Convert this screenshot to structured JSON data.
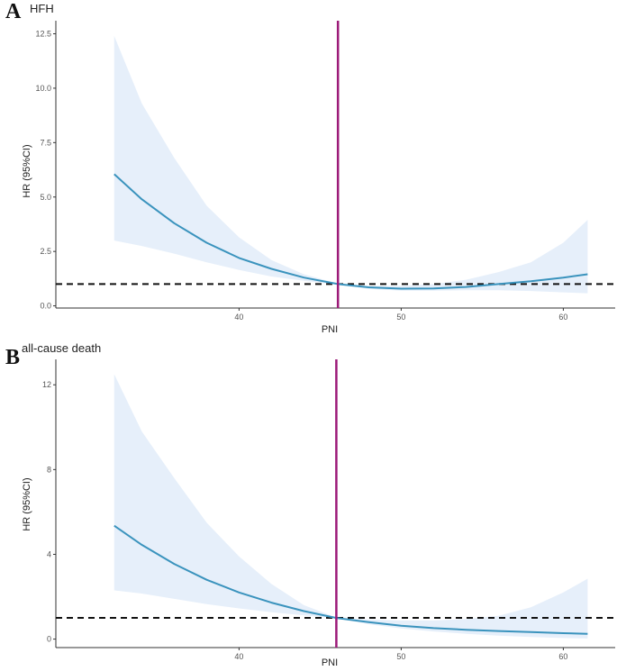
{
  "chart_data": [
    {
      "type": "line",
      "panel_label": "A",
      "title": "HFH",
      "xlabel": "PNI",
      "ylabel": "HR (95%CI)",
      "xlim": [
        28.7,
        63.2
      ],
      "ylim": [
        -0.1,
        13.1
      ],
      "x_ticks": [
        40,
        50,
        60
      ],
      "y_ticks": [
        0.0,
        2.5,
        5.0,
        7.5,
        10.0,
        12.5
      ],
      "y_tick_labels": [
        "0.0",
        "2.5",
        "5.0",
        "7.5",
        "10.0",
        "12.5"
      ],
      "reference_hr": 1,
      "cutoff_pni": 46.1,
      "series": [
        {
          "name": "HR",
          "x": [
            32.3,
            34,
            36,
            38,
            40,
            42,
            44,
            46.1,
            48,
            50,
            52,
            54,
            56,
            58,
            60,
            61.5
          ],
          "y": [
            6.05,
            4.9,
            3.8,
            2.9,
            2.2,
            1.7,
            1.3,
            1.0,
            0.85,
            0.79,
            0.8,
            0.87,
            1.0,
            1.13,
            1.3,
            1.45
          ],
          "lower": [
            3.0,
            2.75,
            2.4,
            2.0,
            1.65,
            1.35,
            1.15,
            0.97,
            0.78,
            0.7,
            0.7,
            0.72,
            0.72,
            0.68,
            0.62,
            0.58
          ],
          "upper": [
            12.4,
            9.3,
            6.8,
            4.6,
            3.15,
            2.1,
            1.45,
            1.02,
            0.9,
            0.92,
            1.0,
            1.2,
            1.55,
            2.0,
            2.9,
            3.95
          ]
        }
      ]
    },
    {
      "type": "line",
      "panel_label": "B",
      "title": "all-cause death",
      "xlabel": "PNI",
      "ylabel": "HR (95%CI)",
      "xlim": [
        28.7,
        63.2
      ],
      "ylim": [
        -0.4,
        13.2
      ],
      "x_ticks": [
        40,
        50,
        60
      ],
      "y_ticks": [
        0,
        4,
        8,
        12
      ],
      "y_tick_labels": [
        "0",
        "4",
        "8",
        "12"
      ],
      "reference_hr": 1,
      "cutoff_pni": 46.0,
      "series": [
        {
          "name": "HR",
          "x": [
            32.3,
            34,
            36,
            38,
            40,
            42,
            44,
            46,
            48,
            50,
            52,
            54,
            56,
            58,
            60,
            61.5
          ],
          "y": [
            5.35,
            4.45,
            3.55,
            2.8,
            2.2,
            1.72,
            1.32,
            1.0,
            0.8,
            0.63,
            0.52,
            0.44,
            0.38,
            0.33,
            0.28,
            0.25
          ],
          "lower": [
            2.3,
            2.15,
            1.9,
            1.65,
            1.45,
            1.27,
            1.12,
            0.98,
            0.7,
            0.5,
            0.36,
            0.25,
            0.16,
            0.1,
            0.05,
            0.03
          ],
          "upper": [
            12.5,
            9.8,
            7.6,
            5.5,
            3.9,
            2.6,
            1.6,
            1.02,
            0.92,
            0.88,
            0.88,
            0.95,
            1.1,
            1.5,
            2.2,
            2.85
          ]
        }
      ]
    }
  ],
  "colors": {
    "line": "#3a93bd",
    "ci_band": "#e6effa",
    "cutoff": "#9c1a78",
    "reference": "#111111",
    "axis": "#333333"
  }
}
